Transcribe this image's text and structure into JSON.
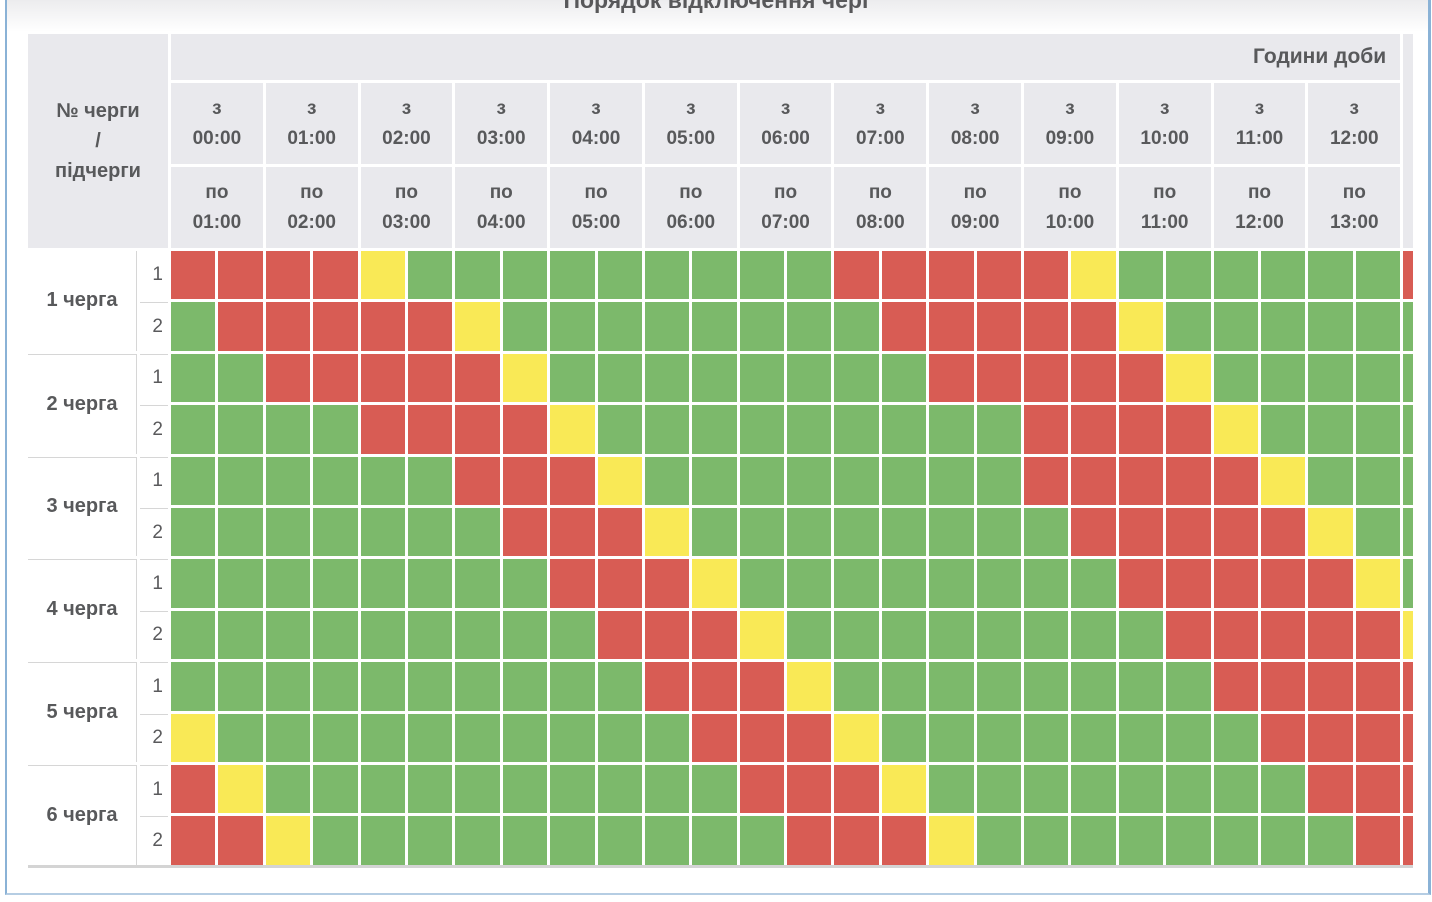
{
  "title": "Порядок відключення черг",
  "colors": {
    "red": "#d85c54",
    "green": "#7cb96b",
    "yellow": "#f9e956",
    "header_bg": "#e9e9ed",
    "text": "#58595b",
    "panel_border": "#8ab2d6",
    "panel_border_bottom": "#b5cde3",
    "label_line": "#d6d6d6",
    "table_bottom_border": "#d4d4d4",
    "grid_line": "#ffffff"
  },
  "chart_data": {
    "type": "heatmap",
    "title": "Порядок відключення черг",
    "corner_header_lines": [
      "№ черги",
      "/",
      "підчерги"
    ],
    "hours_header": "Години доби",
    "interval_prefix_from": "з",
    "interval_prefix_to": "по",
    "columns": [
      {
        "from": "00:00",
        "to": "01:00"
      },
      {
        "from": "01:00",
        "to": "02:00"
      },
      {
        "from": "02:00",
        "to": "03:00"
      },
      {
        "from": "03:00",
        "to": "04:00"
      },
      {
        "from": "04:00",
        "to": "05:00"
      },
      {
        "from": "05:00",
        "to": "06:00"
      },
      {
        "from": "06:00",
        "to": "07:00"
      },
      {
        "from": "07:00",
        "to": "08:00"
      },
      {
        "from": "08:00",
        "to": "09:00"
      },
      {
        "from": "09:00",
        "to": "10:00"
      },
      {
        "from": "10:00",
        "to": "11:00"
      },
      {
        "from": "11:00",
        "to": "12:00"
      },
      {
        "from": "12:00",
        "to": "13:00"
      }
    ],
    "has_partial_14th_column": true,
    "half_hour_cells_per_row": 27,
    "cell_state_colors": {
      "R": "#d85c54",
      "G": "#7cb96b",
      "Y": "#f9e956"
    },
    "rows": [
      {
        "queue": "1 черга",
        "subqueue": "1",
        "cells": "RRRRYGGGGGGGGGRRRRRYGGGGGGR"
      },
      {
        "queue": "1 черга",
        "subqueue": "2",
        "cells": "GRRRRRYGGGGGGGGRRRRRYGGGGGG"
      },
      {
        "queue": "2 черга",
        "subqueue": "1",
        "cells": "GGRRRRRYGGGGGGGGRRRRRYGGGGG"
      },
      {
        "queue": "2 черга",
        "subqueue": "2",
        "cells": "GGGGRRRRYGGGGGGGGGRRRRYGGGG"
      },
      {
        "queue": "3 черга",
        "subqueue": "1",
        "cells": "GGGGGGRRRYGGGGGGGGRRRRRYGGG"
      },
      {
        "queue": "3 черга",
        "subqueue": "2",
        "cells": "GGGGGGGRRRYGGGGGGGGRRRRRYGG"
      },
      {
        "queue": "4 черга",
        "subqueue": "1",
        "cells": "GGGGGGGGRRRYGGGGGGGGRRRRRYG"
      },
      {
        "queue": "4 черга",
        "subqueue": "2",
        "cells": "GGGGGGGGGRRRYGGGGGGGGRRRRRY"
      },
      {
        "queue": "5 черга",
        "subqueue": "1",
        "cells": "GGGGGGGGGGRRRYGGGGGGGGRRRRR"
      },
      {
        "queue": "5 черга",
        "subqueue": "2",
        "cells": "YGGGGGGGGGGRRRYGGGGGGGGRRRR"
      },
      {
        "queue": "6 черга",
        "subqueue": "1",
        "cells": "RYGGGGGGGGGGRRRYGGGGGGGGRRR"
      },
      {
        "queue": "6 черга",
        "subqueue": "2",
        "cells": "RRYGGGGGGGGGGRRRYGGGGGGGGRR"
      }
    ]
  }
}
